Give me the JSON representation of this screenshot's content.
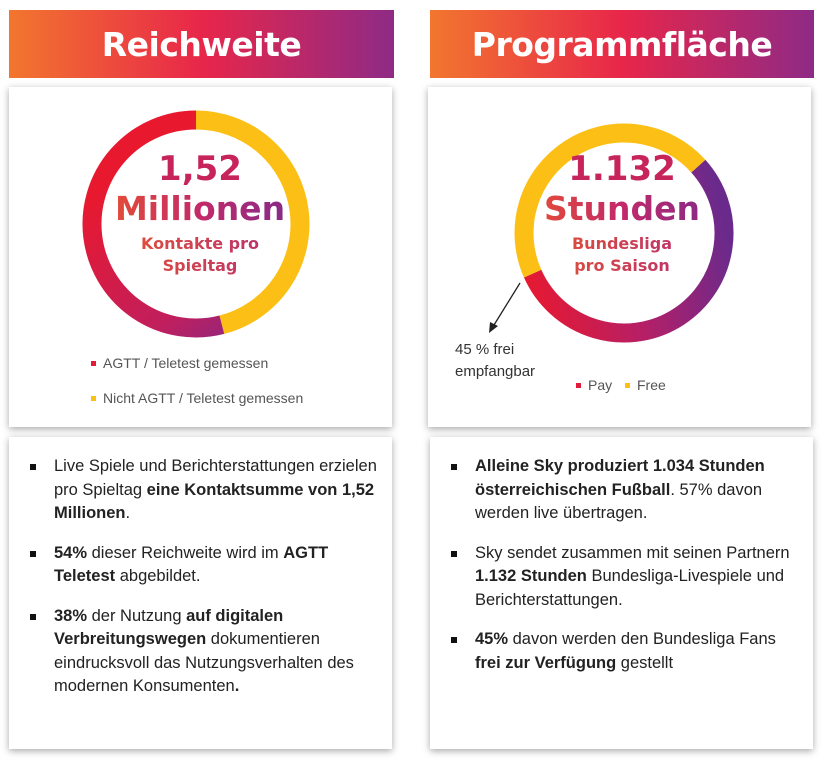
{
  "left": {
    "banner_title": "Reichweite",
    "chart_number": "1,52",
    "chart_unit": "Millionen",
    "chart_sub1": "Kontakte pro",
    "chart_sub2": "Spieltag",
    "legend_1": "AGTT / Teletest gemessen",
    "legend_2": "Nicht AGTT / Teletest gemessen",
    "bullets": [
      [
        "Live Spiele und Berichterstattungen erzielen pro Spieltag ",
        {
          "b": "eine Kontaktsumme von 1,52 Millionen"
        },
        "."
      ],
      [
        {
          "b": "54%"
        },
        " dieser Reichweite wird im ",
        {
          "b": "AGTT Teletest"
        },
        " abgebildet."
      ],
      [
        {
          "b": "38%"
        },
        " der Nutzung ",
        {
          "b": "auf digitalen Verbreitungswegen"
        },
        " dokumentieren eindrucksvoll das Nutzungsverhalten des modernen Konsumenten",
        {
          "b": "."
        }
      ]
    ]
  },
  "right": {
    "banner_title": "Programmfläche",
    "chart_number": "1.132",
    "chart_unit": "Stunden",
    "chart_sub1": "Bundesliga",
    "chart_sub2": "pro Saison",
    "callout_line1": "45 % frei",
    "callout_line2": "empfangbar",
    "legend_1": "Pay",
    "legend_2": "Free",
    "bullets": [
      [
        {
          "b": "Alleine Sky produziert 1.034 Stunden österreichischen Fußball"
        },
        ". 57% davon werden live übertragen."
      ],
      [
        "Sky sendet zusammen mit seinen Partnern ",
        {
          "b": "1.132 Stunden"
        },
        " Bundesliga-Livespiele und Berichterstattungen."
      ],
      [
        {
          "b": "45%"
        },
        " davon werden den Bundesliga Fans ",
        {
          "b": "frei zur Verfügung"
        },
        " gestellt"
      ]
    ]
  },
  "colors": {
    "yellow": "#fbbf16",
    "red": "#e01c3a",
    "purple": "#7a2a8a",
    "blue": "#2b3d8f"
  },
  "chart_data": [
    {
      "type": "pie",
      "categories": [
        "AGTT / Teletest gemessen",
        "Nicht AGTT / Teletest gemessen"
      ],
      "values": [
        54,
        46
      ],
      "unit": "%"
    },
    {
      "type": "pie",
      "categories": [
        "Pay",
        "Free"
      ],
      "values": [
        55,
        45
      ],
      "unit": "%"
    }
  ]
}
